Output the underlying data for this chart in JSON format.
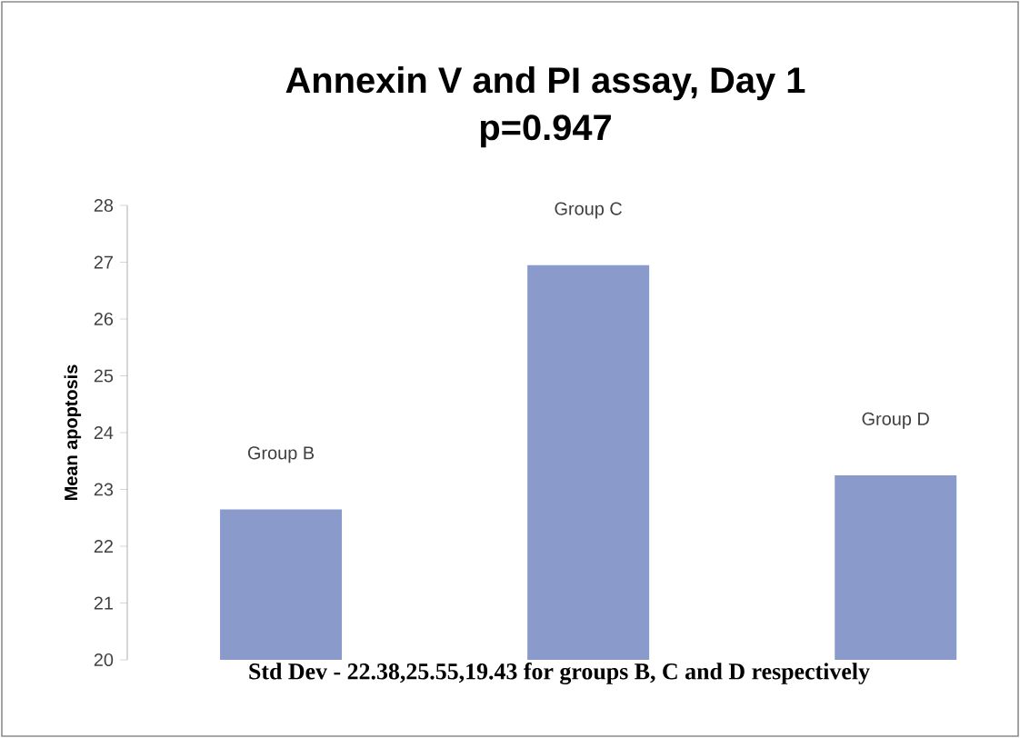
{
  "chart_data": {
    "type": "bar",
    "title": "Annexin V and PI assay, Day 1",
    "subtitle": "p=0.947",
    "ylabel": "Mean apoptosis",
    "xlabel": "Std Dev - 22.38,25.55,19.43 for groups B, C and D respectively",
    "categories": [
      "Group B",
      "Group C",
      "Group D"
    ],
    "values": [
      22.65,
      26.95,
      23.25
    ],
    "color": "#8a9acb",
    "ylim": [
      20,
      28
    ],
    "yticks": [
      20,
      21,
      22,
      23,
      24,
      25,
      26,
      27,
      28
    ],
    "grid": false
  }
}
